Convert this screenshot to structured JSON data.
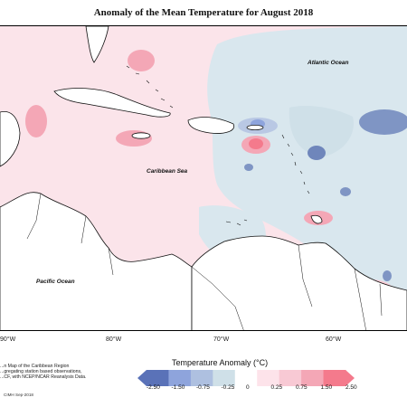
{
  "title": "Anomaly of the Mean Temperature for August 2018",
  "labels": {
    "atlantic": "Atlantic Ocean",
    "caribbean": "Caribbean Sea",
    "pacific": "Pacific Ocean"
  },
  "longitudes": [
    "90°W",
    "80°W",
    "70°W",
    "60°W"
  ],
  "legend": {
    "title": "Temperature Anomaly (°C)",
    "ticks": [
      "-2.50",
      "-1.50",
      "-0.75",
      "-0.25",
      "0",
      "0.25",
      "0.75",
      "1.50",
      "2.50"
    ],
    "colors": [
      "#5a72b8",
      "#8ea4dc",
      "#aec0e0",
      "#cfe0e8",
      "#ffffff",
      "#fde3ea",
      "#f8c9d4",
      "#f4a7b6",
      "#f47a8c"
    ]
  },
  "note": {
    "line1": "...n Map of the Caribbean Region",
    "line2": "...gregating station based observations,",
    "line3": "...CF, with NCEP/NCAR Reanalysis Data."
  },
  "credit": "CIMH Sep-2018"
}
